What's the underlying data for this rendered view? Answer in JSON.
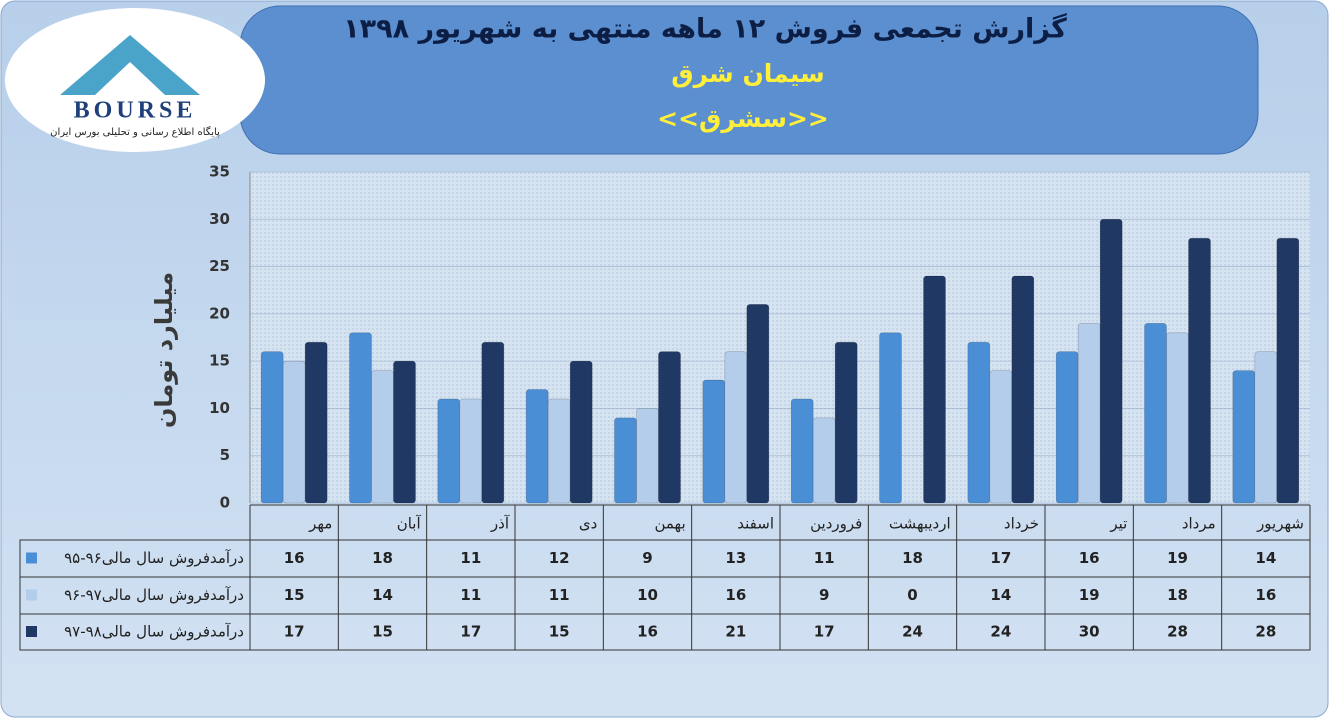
{
  "logo": {
    "brand": "BOURSE",
    "tagline": "پایگاه اطلاع رسانی و تحلیلی بورس ایران"
  },
  "chart_data": {
    "type": "bar",
    "title": "گزارش تجمعی فروش ۱۲ ماهه منتهی به شهریور ۱۳۹۸",
    "subtitle": "سیمان شرق",
    "symbol": "<<سشرق>>",
    "y_label": "میلیارد تومان",
    "categories": [
      "مهر",
      "آبان",
      "آذر",
      "دی",
      "بهمن",
      "اسفند",
      "فروردین",
      "اردیبهشت",
      "خرداد",
      "تیر",
      "مرداد",
      "شهریور"
    ],
    "series": [
      {
        "name": "درآمدفروش سال مالی۹۶-۹۵",
        "color": "#4a8fd6",
        "values": [
          16,
          18,
          11,
          12,
          9,
          13,
          11,
          18,
          17,
          16,
          19,
          14
        ]
      },
      {
        "name": "درآمدفروش سال مالی۹۷-۹۶",
        "color": "#b4cdea",
        "values": [
          15,
          14,
          11,
          11,
          10,
          16,
          9,
          0,
          14,
          19,
          18,
          16
        ]
      },
      {
        "name": "درآمدفروش سال مالی۹۸-۹۷",
        "color": "#1f3864",
        "values": [
          17,
          15,
          17,
          15,
          16,
          21,
          17,
          24,
          24,
          30,
          28,
          28
        ]
      }
    ],
    "ylim": [
      0,
      35
    ],
    "yticks": [
      0,
      5,
      10,
      15,
      20,
      25,
      30,
      35
    ],
    "grid": true
  }
}
